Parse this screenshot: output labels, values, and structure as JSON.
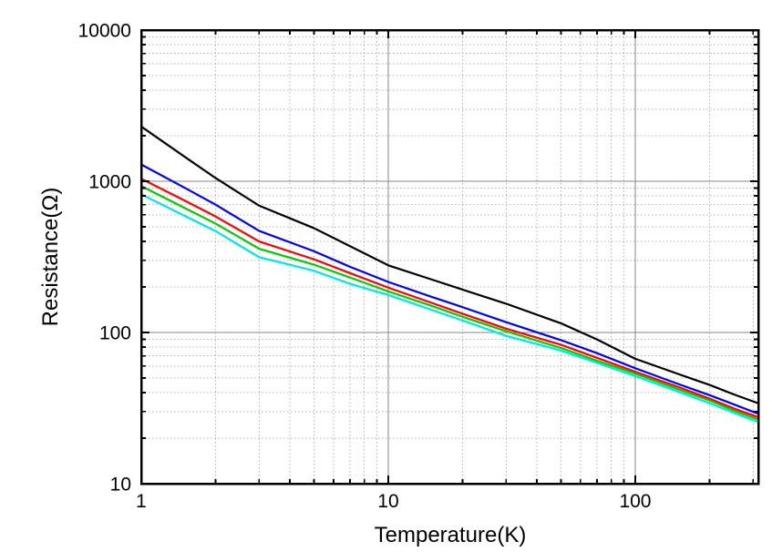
{
  "figure": {
    "background": "#ffffff",
    "frame_color": "#000000"
  },
  "chart_data": {
    "type": "line",
    "title": "",
    "xlabel": "Temperature(K)",
    "ylabel": "Resistance(Ω)",
    "x_scale": "log",
    "y_scale": "log",
    "xlim": [
      1,
      315
    ],
    "ylim": [
      10,
      10000
    ],
    "x_tick_values": [
      1,
      10,
      100
    ],
    "x_tick_labels": [
      "1",
      "10",
      "100"
    ],
    "y_tick_values": [
      10,
      100,
      1000,
      10000
    ],
    "y_tick_labels": [
      "10",
      "100",
      "1000",
      "10000"
    ],
    "grid": {
      "major": true,
      "minor": true,
      "major_color": "#878787",
      "minor_color": "#b3b3b3",
      "minor_style": "dotted"
    },
    "legend": "none",
    "x": [
      1,
      1.5,
      2,
      3,
      5,
      7,
      10,
      15,
      20,
      30,
      50,
      70,
      100,
      150,
      200,
      250,
      315
    ],
    "series": [
      {
        "name": "series-black",
        "color": "#000000",
        "values": [
          2300,
          1450,
          1050,
          690,
          490,
          372,
          278,
          224,
          192,
          155,
          115,
          90,
          67,
          53,
          45,
          39,
          34
        ]
      },
      {
        "name": "series-blue",
        "color": "#0000ff",
        "values": [
          1290,
          905,
          700,
          470,
          345,
          272,
          216,
          172,
          147,
          117,
          89,
          73,
          58,
          45.5,
          38.5,
          33.5,
          29
        ]
      },
      {
        "name": "series-red",
        "color": "#ff0000",
        "values": [
          1040,
          745,
          585,
          400,
          305,
          247,
          198,
          157,
          133,
          106,
          83,
          68,
          55,
          43.5,
          36.5,
          31.5,
          27.5
        ]
      },
      {
        "name": "series-green",
        "color": "#00cc00",
        "values": [
          930,
          665,
          525,
          358,
          281,
          231,
          187,
          150,
          127,
          102,
          79,
          65,
          53.5,
          42,
          35.5,
          30.5,
          26.5
        ]
      },
      {
        "name": "series-cyan",
        "color": "#00e5e5",
        "values": [
          820,
          590,
          468,
          315,
          256,
          210,
          177,
          141,
          120,
          95,
          76,
          63,
          51.5,
          40.5,
          34,
          29.5,
          25.5
        ]
      }
    ]
  }
}
